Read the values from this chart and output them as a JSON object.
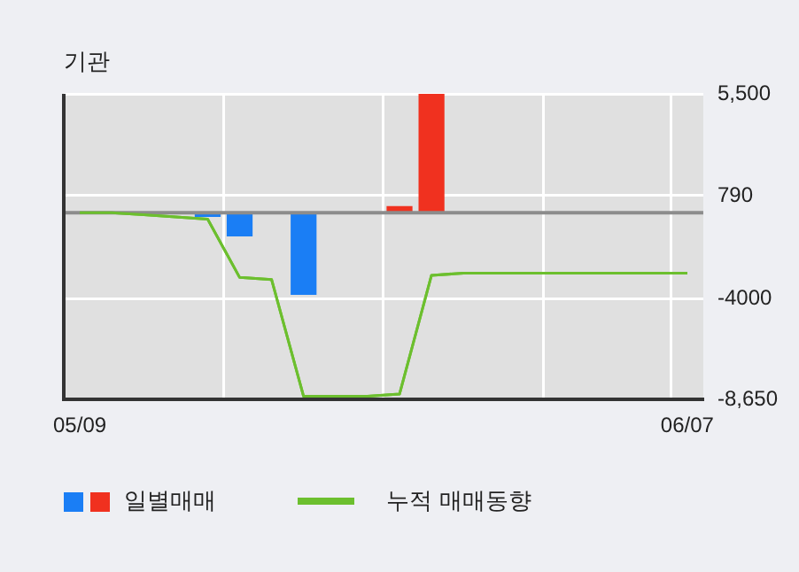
{
  "chart_data": {
    "type": "bar",
    "title": "기관",
    "categories": [
      "05/09",
      null,
      null,
      null,
      null,
      null,
      null,
      null,
      null,
      null,
      null,
      null,
      null,
      null,
      null,
      null,
      null,
      null,
      null,
      "06/07"
    ],
    "series": [
      {
        "name": "일별매매",
        "colors": [
          null,
          null,
          null,
          null,
          "#1a7ef5",
          "#1a7ef5",
          null,
          "#1a7ef5",
          null,
          null,
          "#f0311f",
          "#f0311f",
          null,
          null,
          null,
          null,
          null,
          null,
          null,
          null
        ],
        "values": [
          null,
          null,
          null,
          null,
          -200,
          -1100,
          null,
          -3800,
          null,
          null,
          300,
          5500,
          null,
          null,
          null,
          null,
          null,
          null,
          null,
          null
        ]
      },
      {
        "name": "누적 매매동향",
        "type": "line",
        "color": "#6cbf2e",
        "values": [
          0,
          0,
          -100,
          -200,
          -300,
          -3000,
          -3100,
          -8500,
          -8500,
          -8500,
          -8400,
          -2900,
          -2800,
          -2800,
          -2800,
          -2800,
          -2800,
          -2800,
          -2800,
          -2800
        ]
      }
    ],
    "ylim": [
      -8650,
      5500
    ],
    "yticks": [
      {
        "value": -8650,
        "label": "-8,650"
      },
      -4000,
      790,
      {
        "value": 5500,
        "label": "5,500"
      }
    ],
    "grid": true,
    "legend": "bottom",
    "ref_lines": [
      {
        "axis": "y",
        "value": 0,
        "color": "#8c8c8c"
      }
    ]
  }
}
